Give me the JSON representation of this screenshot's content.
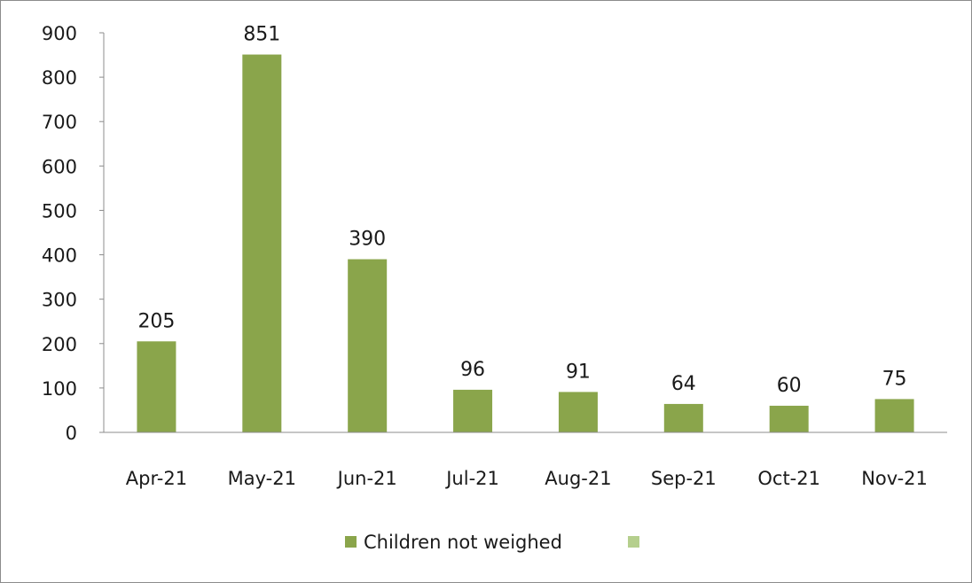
{
  "chart_data": {
    "type": "bar",
    "categories": [
      "Apr-21",
      "May-21",
      "Jun-21",
      "Jul-21",
      "Aug-21",
      "Sep-21",
      "Oct-21",
      "Nov-21"
    ],
    "series": [
      {
        "name": "Children not weighed",
        "values": [
          205,
          851,
          390,
          96,
          91,
          64,
          60,
          75
        ],
        "color": "#8aa54b"
      }
    ],
    "data_labels": [
      "205",
      "851",
      "390",
      "96",
      "91",
      "64",
      "60",
      "75"
    ],
    "title": "",
    "xlabel": "",
    "ylabel": "",
    "ylim": [
      0,
      900
    ],
    "yticks": [
      0,
      100,
      200,
      300,
      400,
      500,
      600,
      700,
      800,
      900
    ],
    "ytick_labels": [
      "0",
      "100",
      "200",
      "300",
      "400",
      "500",
      "600",
      "700",
      "800",
      "900"
    ],
    "grid": false,
    "legend": {
      "position": "bottom",
      "entries": [
        {
          "label": "Children not weighed",
          "color": "#8aa54b"
        },
        {
          "label": "",
          "color": "#b5cf8d"
        }
      ]
    }
  }
}
